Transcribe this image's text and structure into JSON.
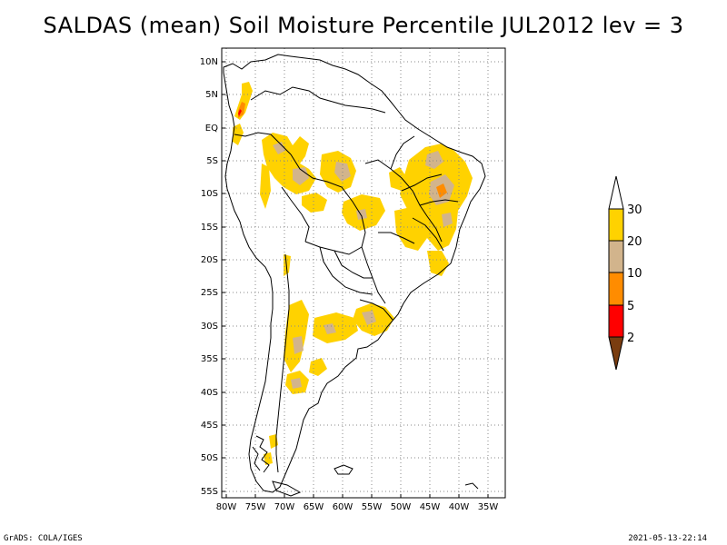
{
  "title": "SALDAS (mean) Soil Moisture Percentile JUL2012 lev = 3",
  "lat_ticks": [
    "10N",
    "5N",
    "EQ",
    "5S",
    "10S",
    "15S",
    "20S",
    "25S",
    "30S",
    "35S",
    "40S",
    "45S",
    "50S",
    "55S"
  ],
  "lon_ticks": [
    "80W",
    "75W",
    "70W",
    "65W",
    "60W",
    "55W",
    "50W",
    "45W",
    "40W",
    "35W"
  ],
  "colorbar": {
    "labels": [
      "2",
      "5",
      "10",
      "20",
      "30"
    ],
    "colors": [
      "#7a3d10",
      "#ff0000",
      "#ff8c00",
      "#d2b48c",
      "#ffd200",
      "#ffffff"
    ]
  },
  "palette": {
    "yellow": "#ffd200",
    "tan": "#d2b48c",
    "orange": "#ff8c00",
    "red": "#ff0000",
    "land_line": "#000000",
    "grid": "#888888"
  },
  "footer": {
    "left": "GrADS: COLA/IGES",
    "right": "2021-05-13-22:14"
  }
}
